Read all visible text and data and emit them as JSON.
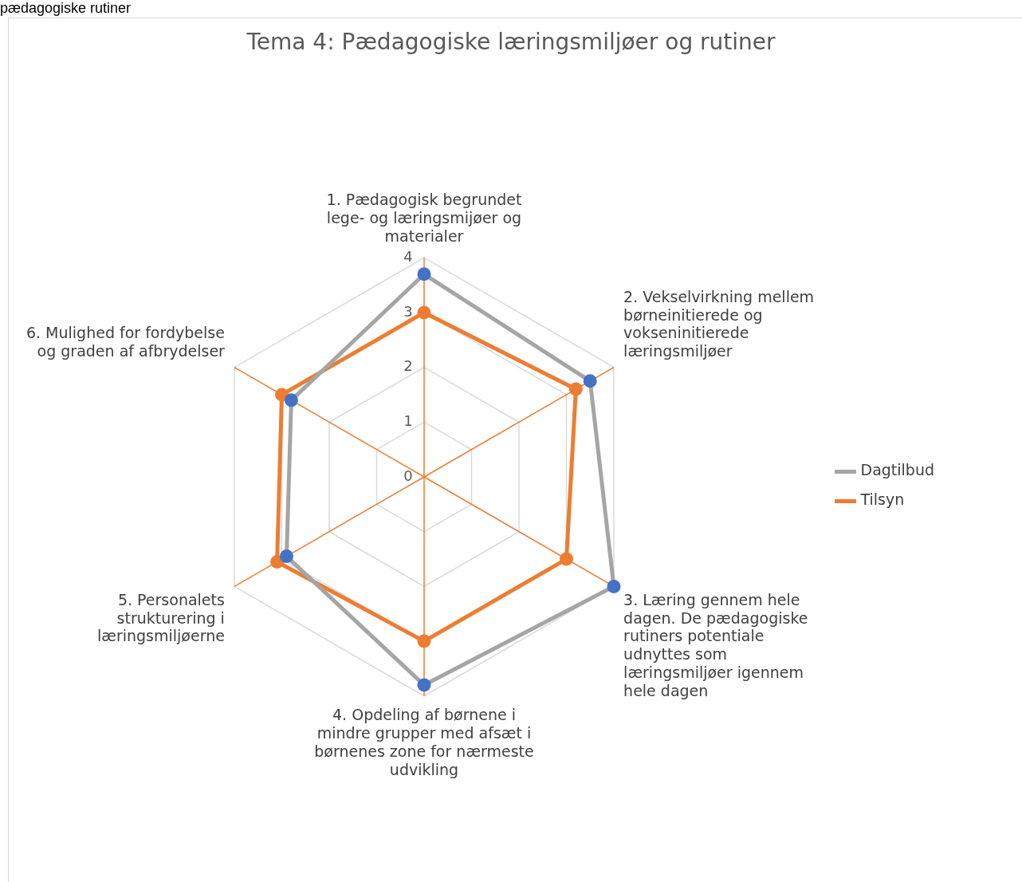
{
  "chart_data": {
    "type": "radar",
    "title": "Tema 4: Pædagogiske læringsmiljøer og rutiner",
    "annotations": [
      "pædagogiske rutiner"
    ],
    "categories": [
      "1. Pædagogisk begrundet lege- og læringsmijøer og materialer",
      "2. Vekselvirkning mellem børneinitierede og vokseninitierede læringsmiljøer",
      "3. Læring gennem hele dagen. De pædagogiske rutiners potentiale udnyttes som læringsmiljøer igennem hele dagen",
      "4. Opdeling af børnene i mindre grupper med afsæt i børnenes zone for nærmeste udvikling",
      "5. Personalets strukturering i læringsmiljøerne",
      "6. Mulighed for fordybelse og graden af afbrydelser"
    ],
    "series": [
      {
        "name": "Dagtilbud",
        "color": "#a5a5a5",
        "values": [
          3.7,
          3.5,
          4.0,
          3.8,
          2.9,
          2.8
        ]
      },
      {
        "name": "Tilsyn",
        "color": "#ed7d31",
        "values": [
          3.0,
          3.2,
          3.0,
          3.0,
          3.1,
          3.0
        ]
      }
    ],
    "ylim": [
      0,
      4
    ],
    "yticks": [
      0,
      1,
      2,
      3,
      4
    ],
    "grid": true,
    "legend": "right",
    "marker": "circle"
  }
}
